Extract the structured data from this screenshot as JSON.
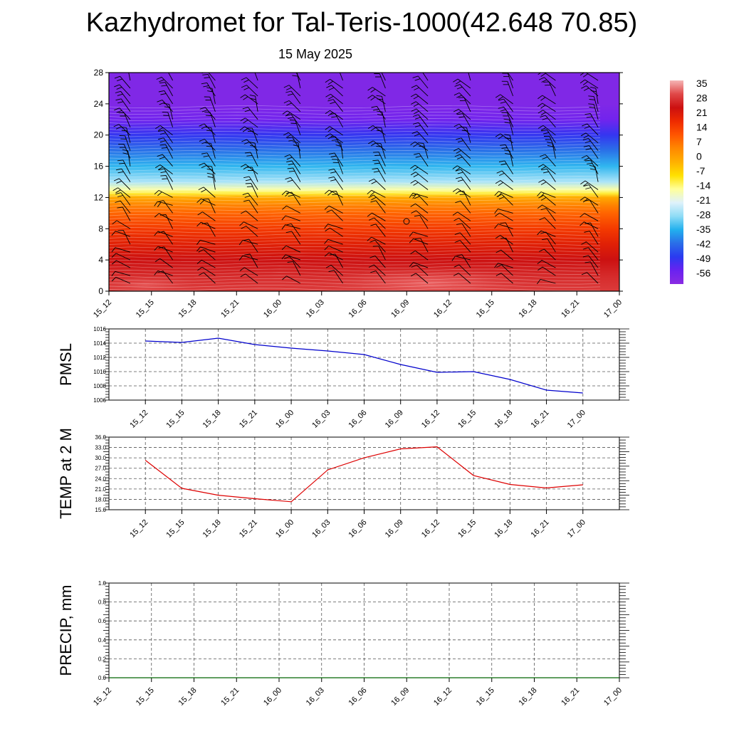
{
  "title": "Kazhydromet for Tal-Teris-1000(42.648 70.85)",
  "subtitle": "15 May 2025",
  "chart_data": [
    {
      "type": "heatmap",
      "title": "",
      "xlabel": "",
      "ylabel": "",
      "x_ticks": [
        "15_12",
        "15_15",
        "15_18",
        "15_21",
        "16_00",
        "16_03",
        "16_06",
        "16_09",
        "16_12",
        "16_15",
        "16_18",
        "16_21",
        "17_00"
      ],
      "y_ticks": [
        0,
        4,
        8,
        12,
        16,
        20,
        24,
        28
      ],
      "ylim": [
        0,
        28
      ],
      "colorbar_labels": [
        "35",
        "28",
        "21",
        "14",
        "7",
        "0",
        "-7",
        "-14",
        "-21",
        "-28",
        "-35",
        "-42",
        "-49",
        "-56"
      ],
      "colorbar_colors": [
        "#f5b5b5",
        "#e04848",
        "#cc1010",
        "#ee2a00",
        "#ff5500",
        "#ff8800",
        "#ffb000",
        "#ffe000",
        "#ffff9a",
        "#dff2fb",
        "#8fdcf6",
        "#22b0ee",
        "#2a6ee8",
        "#2a3af0",
        "#6a22f0",
        "#8a2be2"
      ],
      "temperature_by_level": [
        {
          "level": 0,
          "value": 30
        },
        {
          "level": 2,
          "value": 28
        },
        {
          "level": 4,
          "value": 25
        },
        {
          "level": 6,
          "value": 21
        },
        {
          "level": 8,
          "value": 16
        },
        {
          "level": 10,
          "value": 10
        },
        {
          "level": 11,
          "value": 6
        },
        {
          "level": 12,
          "value": 0
        },
        {
          "level": 12.5,
          "value": -10
        },
        {
          "level": 13,
          "value": -15
        },
        {
          "level": 14,
          "value": -25
        },
        {
          "level": 16,
          "value": -33
        },
        {
          "level": 18,
          "value": -40
        },
        {
          "level": 20,
          "value": -48
        },
        {
          "level": 22,
          "value": -55
        },
        {
          "level": 24,
          "value": -58
        },
        {
          "level": 28,
          "value": -58
        }
      ],
      "annotations": "wind barbs at each level and time"
    },
    {
      "type": "line",
      "ylabel": "PMSL",
      "x_ticks": [
        "15_12",
        "15_15",
        "15_18",
        "15_21",
        "16_00",
        "16_03",
        "16_06",
        "16_09",
        "16_12",
        "16_15",
        "16_18",
        "16_21",
        "17_00"
      ],
      "y_ticks": [
        "1006",
        "1008",
        "1010",
        "1012",
        "1014",
        "1016"
      ],
      "ylim": [
        1006,
        1016
      ],
      "grid": true,
      "color": "#0000cc",
      "values": [
        1014.3,
        1014.1,
        1014.7,
        1013.8,
        1013.3,
        1012.9,
        1012.4,
        1011.0,
        1009.9,
        1010.0,
        1008.9,
        1007.4,
        1007.0
      ]
    },
    {
      "type": "line",
      "ylabel": "TEMP at 2 M",
      "x_ticks": [
        "15_12",
        "15_15",
        "15_18",
        "15_21",
        "16_00",
        "16_03",
        "16_06",
        "16_09",
        "16_12",
        "16_15",
        "16_18",
        "16_21",
        "17_00"
      ],
      "y_ticks": [
        "15.0",
        "18.0",
        "21.0",
        "24.0",
        "27.0",
        "30.0",
        "33.0",
        "36.0"
      ],
      "ylim": [
        15,
        36
      ],
      "grid": true,
      "color": "#dd0000",
      "values": [
        29.3,
        21.2,
        19.2,
        18.2,
        17.3,
        26.5,
        30.0,
        32.6,
        33.2,
        24.9,
        22.3,
        21.3,
        22.2
      ]
    },
    {
      "type": "line",
      "ylabel": "PRECIP, mm",
      "x_ticks": [
        "15_12",
        "15_15",
        "15_18",
        "15_21",
        "16_00",
        "16_03",
        "16_06",
        "16_09",
        "16_12",
        "16_15",
        "16_18",
        "16_21",
        "17_00"
      ],
      "y_ticks": [
        "0.0",
        "0.2",
        "0.4",
        "0.6",
        "0.8",
        "1.0"
      ],
      "ylim": [
        0,
        1
      ],
      "grid": true,
      "color": "#006400",
      "values": [
        0,
        0,
        0,
        0,
        0,
        0,
        0,
        0,
        0,
        0,
        0,
        0,
        0
      ]
    }
  ]
}
